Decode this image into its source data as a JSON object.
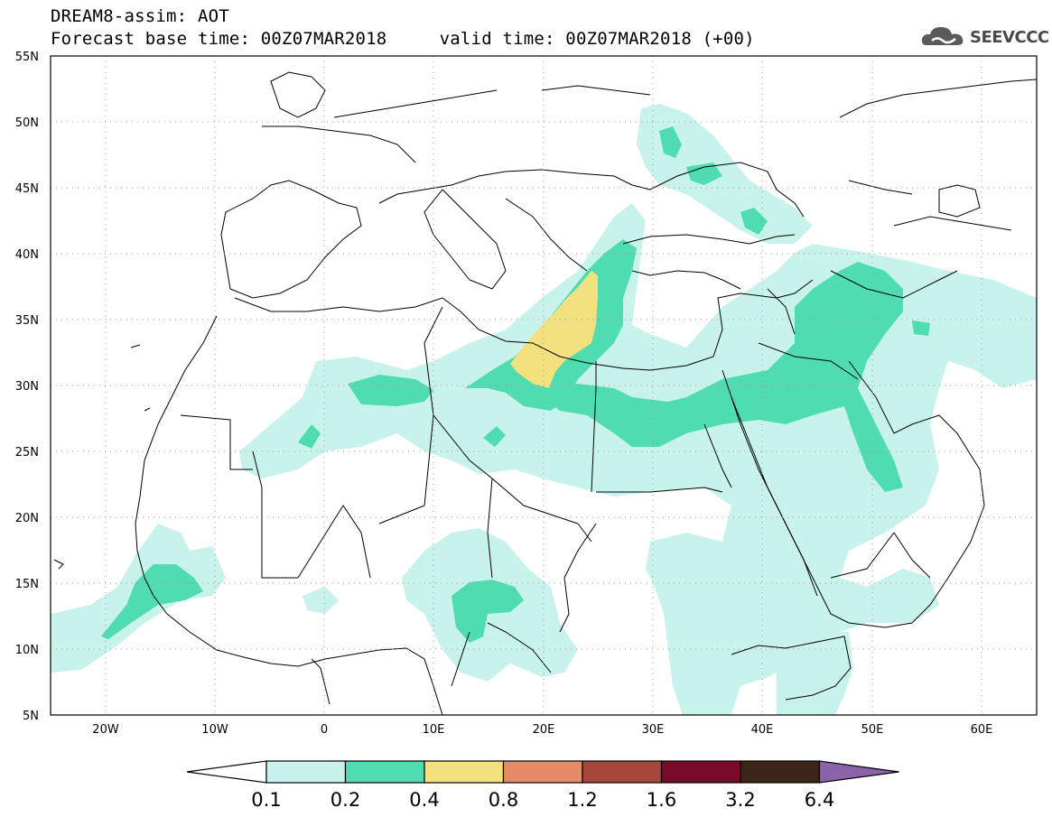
{
  "header": {
    "line1": "DREAM8-assim: AOT",
    "line2": "Forecast base time: 00Z07MAR2018     valid time: 00Z07MAR2018 (+00)"
  },
  "brand": {
    "name": "SEEVCCC",
    "icon": "cloud-logo-icon"
  },
  "map": {
    "lon_range": [
      -25,
      65
    ],
    "lat_range": [
      5,
      55
    ],
    "lat_labels": [
      "55N",
      "50N",
      "45N",
      "40N",
      "35N",
      "30N",
      "25N",
      "20N",
      "15N",
      "10N",
      "5N"
    ],
    "lon_labels": [
      "20W",
      "10W",
      "0",
      "10E",
      "20E",
      "30E",
      "40E",
      "50E",
      "60E"
    ],
    "grid": true
  },
  "colorbar": {
    "levels": [
      "0.1",
      "0.2",
      "0.4",
      "0.8",
      "1.2",
      "1.6",
      "3.2",
      "6.4"
    ],
    "colors": [
      "#c8f3ec",
      "#4fdcb0",
      "#f3e07e",
      "#e68c69",
      "#a5473a",
      "#7a0a2a",
      "#3b2516",
      "#8a63a8"
    ]
  }
}
